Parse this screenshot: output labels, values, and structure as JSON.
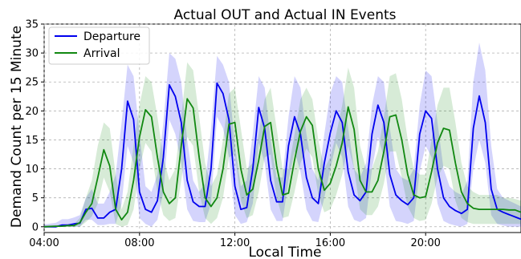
{
  "chart_data": {
    "type": "line",
    "title": "Actual OUT and Actual IN Events",
    "xlabel": "Local Time",
    "ylabel": "Demand Count per 15 Minute",
    "xlim": [
      4.0,
      24.0
    ],
    "ylim": [
      -1,
      35
    ],
    "xticks": [
      4,
      8,
      12,
      16,
      20
    ],
    "xtick_labels": [
      "04:00",
      "08:00",
      "12:00",
      "16:00",
      "20:00"
    ],
    "yticks": [
      0,
      5,
      10,
      15,
      20,
      25,
      30,
      35
    ],
    "ytick_labels": [
      "0",
      "5",
      "10",
      "15",
      "20",
      "25",
      "30",
      "35"
    ],
    "grid": true,
    "legend_position": "top-left",
    "colors": {
      "departure": "#0000ee",
      "arrival": "#118811"
    },
    "series": [
      {
        "name": "Departure",
        "color": "#0000ee",
        "x": [
          4.0,
          4.5,
          4.75,
          5.0,
          5.25,
          5.5,
          5.75,
          6.0,
          6.25,
          6.5,
          6.75,
          7.0,
          7.25,
          7.5,
          7.75,
          8.0,
          8.25,
          8.5,
          8.75,
          9.0,
          9.25,
          9.5,
          9.75,
          10.0,
          10.25,
          10.5,
          10.75,
          11.0,
          11.25,
          11.5,
          11.75,
          12.0,
          12.25,
          12.5,
          12.75,
          13.0,
          13.25,
          13.5,
          13.75,
          14.0,
          14.25,
          14.5,
          14.75,
          15.0,
          15.25,
          15.5,
          15.75,
          16.0,
          16.25,
          16.5,
          16.75,
          17.0,
          17.25,
          17.5,
          17.75,
          18.0,
          18.25,
          18.5,
          18.75,
          19.0,
          19.25,
          19.5,
          19.75,
          20.0,
          20.25,
          20.5,
          20.75,
          21.0,
          21.25,
          21.5,
          21.75,
          22.0,
          22.25,
          22.5,
          22.75,
          23.0,
          23.25,
          23.5,
          23.75,
          24.0
        ],
        "values": [
          0,
          0,
          0.3,
          0.3,
          0.5,
          0.6,
          3,
          3.2,
          1.5,
          1.5,
          2.5,
          3,
          10,
          21.7,
          18.5,
          6,
          3,
          2.5,
          4.5,
          12,
          24.5,
          22.5,
          18,
          8,
          4.3,
          3.5,
          3.5,
          10,
          24.8,
          23,
          18.5,
          7,
          3,
          3.3,
          10,
          20.6,
          17,
          8,
          4.3,
          4.3,
          14,
          19,
          16,
          8.5,
          5,
          4,
          11,
          16.2,
          20,
          18,
          9.5,
          5.5,
          4.5,
          6,
          16,
          21,
          18,
          9,
          5.5,
          4.5,
          3.8,
          5,
          16,
          20,
          18.7,
          10,
          5,
          3.5,
          2.8,
          2.3,
          3,
          17,
          22.6,
          18,
          6.5,
          3,
          2.5,
          2.1,
          1.7,
          1.3
        ],
        "upper": [
          0.4,
          0.7,
          1.3,
          1.3,
          1.6,
          2,
          5,
          6.5,
          4,
          4,
          6,
          9,
          18,
          28,
          26,
          16,
          7,
          6,
          9,
          18,
          30,
          29,
          25,
          15,
          8,
          6,
          7.5,
          17,
          29.5,
          28,
          25,
          14,
          7,
          8,
          16,
          26,
          24,
          15,
          8.5,
          8.5,
          19,
          26,
          24,
          16,
          10,
          8,
          16,
          23,
          26,
          25,
          17,
          10,
          8.5,
          11,
          21,
          26,
          25,
          17,
          10,
          8.5,
          8,
          10,
          21,
          27,
          26,
          18,
          10,
          7,
          6,
          5.5,
          8,
          25,
          31.8,
          27,
          14,
          6.5,
          5,
          4.5,
          4,
          3.5
        ],
        "lower": [
          0,
          0,
          0,
          0,
          0,
          0,
          1.2,
          1.2,
          0.3,
          0.3,
          0.5,
          0.5,
          4,
          14,
          11,
          1.5,
          0.5,
          0,
          1.2,
          6,
          18.5,
          16,
          11,
          3,
          1,
          0.8,
          0.8,
          4,
          19,
          17,
          12,
          2,
          0.5,
          0.8,
          4,
          14.5,
          11,
          3,
          1,
          1,
          8,
          13,
          9.5,
          3,
          1,
          0.8,
          5,
          10,
          14.5,
          12,
          3.5,
          1.2,
          0.8,
          1.5,
          10,
          15.5,
          12,
          3.5,
          1,
          0.8,
          0.5,
          1,
          9.5,
          14,
          12,
          4,
          1,
          0.5,
          0.2,
          0,
          0.5,
          10,
          15,
          11,
          2,
          0.5,
          0.2,
          0,
          0,
          0
        ]
      },
      {
        "name": "Arrival",
        "color": "#118811",
        "x": [
          4.0,
          4.5,
          4.75,
          5.0,
          5.25,
          5.5,
          5.75,
          6.0,
          6.25,
          6.5,
          6.75,
          7.0,
          7.25,
          7.5,
          7.75,
          8.0,
          8.25,
          8.5,
          8.75,
          9.0,
          9.25,
          9.5,
          9.75,
          10.0,
          10.25,
          10.5,
          10.75,
          11.0,
          11.25,
          11.5,
          11.75,
          12.0,
          12.25,
          12.5,
          12.75,
          13.0,
          13.25,
          13.5,
          13.75,
          14.0,
          14.25,
          14.5,
          14.75,
          15.0,
          15.25,
          15.5,
          15.75,
          16.0,
          16.25,
          16.5,
          16.75,
          17.0,
          17.25,
          17.5,
          17.75,
          18.0,
          18.25,
          18.5,
          18.75,
          19.0,
          19.25,
          19.5,
          19.75,
          20.0,
          20.25,
          20.5,
          20.75,
          21.0,
          21.25,
          21.5,
          21.75,
          22.0,
          22.25,
          22.5,
          22.75,
          23.0,
          23.25,
          23.5,
          23.75,
          24.0
        ],
        "values": [
          0,
          0.1,
          0.1,
          0.2,
          0.2,
          0.7,
          2.5,
          4,
          8.5,
          13.3,
          10.5,
          3,
          1.2,
          2.5,
          8,
          15.5,
          20.2,
          19,
          12,
          6,
          4,
          5,
          14,
          22.1,
          20.5,
          12,
          5,
          3.5,
          5,
          10,
          17.7,
          18,
          10,
          5.5,
          6.5,
          11.5,
          17.3,
          18,
          10.5,
          5.5,
          5.8,
          11.5,
          16.5,
          19,
          17.5,
          10,
          6.3,
          7.5,
          10.5,
          14.5,
          20.7,
          16.8,
          8,
          6,
          6,
          8,
          13,
          19,
          19.3,
          15,
          9,
          5.5,
          5,
          5.2,
          9.5,
          14.5,
          17,
          16.7,
          11,
          6,
          4,
          3.2,
          3,
          3,
          3,
          3,
          3,
          2.9,
          2.9,
          2.5
        ],
        "upper": [
          0.2,
          0.3,
          0.3,
          0.4,
          0.5,
          1.5,
          5,
          8,
          14,
          18,
          17,
          9,
          3,
          6,
          14,
          21,
          26,
          25,
          19,
          12,
          8,
          10,
          19,
          28.4,
          27,
          19,
          11,
          7,
          9,
          15,
          23,
          24,
          17,
          10,
          11,
          16,
          22,
          24,
          17,
          10,
          10,
          16,
          22,
          24,
          22,
          15,
          10,
          12,
          16,
          21,
          27.5,
          24,
          14,
          10,
          10,
          13,
          19,
          26,
          26.5,
          22,
          15,
          10,
          9,
          9,
          15,
          21,
          24,
          24,
          18,
          11,
          7,
          6,
          5.5,
          5.5,
          5.5,
          5.5,
          5,
          5,
          4.8,
          4.5
        ],
        "lower": [
          0,
          0,
          0,
          0,
          0,
          0,
          0.8,
          1.8,
          4,
          8.5,
          6,
          0.5,
          0,
          0.3,
          3,
          10,
          14.5,
          13,
          6,
          2,
          1,
          1.5,
          8,
          15.5,
          14,
          6,
          1.5,
          0.5,
          1.5,
          5,
          12,
          12.5,
          4.5,
          1.5,
          2,
          6,
          12,
          12.5,
          5,
          1.5,
          1.8,
          6,
          11,
          13.5,
          12,
          5.5,
          2.5,
          3,
          5.5,
          9,
          14,
          10,
          3,
          2,
          2,
          3.5,
          7.5,
          13,
          13,
          8.5,
          3.5,
          1.5,
          1,
          1.2,
          4,
          8.5,
          10.5,
          10,
          4.5,
          1.5,
          0.8,
          0.5,
          0.5,
          0.5,
          0.5,
          0.5,
          0.5,
          0.5,
          0.5,
          0.5
        ]
      }
    ]
  }
}
